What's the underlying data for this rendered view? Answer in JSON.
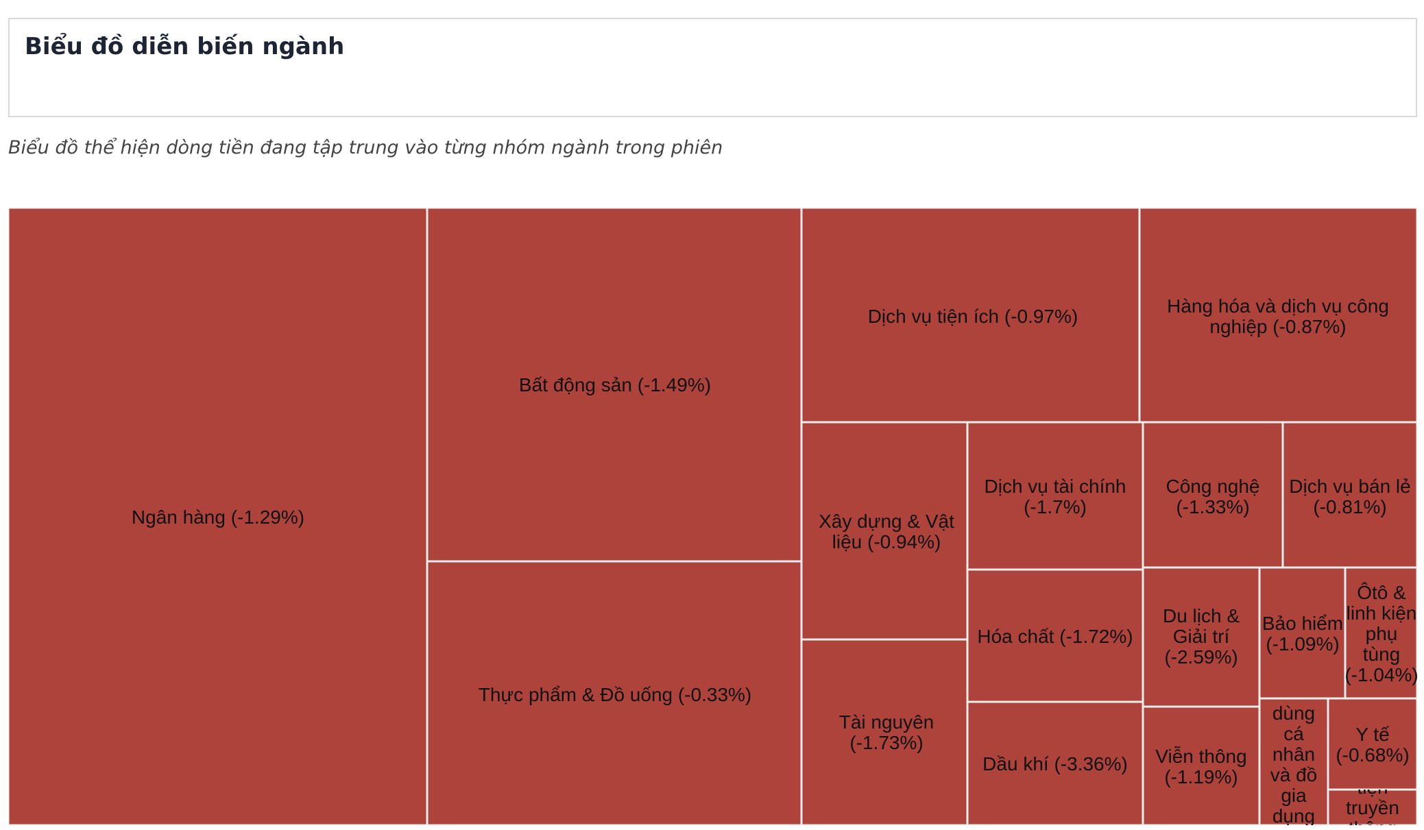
{
  "header": {
    "title": "Biểu đồ diễn biến ngành"
  },
  "subtitle": "Biểu đồ thể hiện dòng tiền đang tập trung vào từng nhóm ngành trong phiên",
  "colors": {
    "tile_fill": "#ad433b",
    "tile_border": "#ededed",
    "label_text": "#111111"
  },
  "chart_data": {
    "type": "treemap",
    "title": "",
    "value_unit": "%",
    "tiles": [
      {
        "name": "Ngân hàng",
        "change": -1.29,
        "label_lines": [
          "Ngân hàng (-1.29%)"
        ]
      },
      {
        "name": "Bất động sản",
        "change": -1.49,
        "label_lines": [
          "Bất động sản (-1.49%)"
        ]
      },
      {
        "name": "Thực phẩm & Đồ uống",
        "change": -0.33,
        "label_lines": [
          "Thực phẩm & Đồ uống (-0.33%)"
        ]
      },
      {
        "name": "Dịch vụ tiện ích",
        "change": -0.97,
        "label_lines": [
          "Dịch vụ tiện ích (-0.97%)"
        ]
      },
      {
        "name": "Hàng hóa và dịch vụ công nghiệp",
        "change": -0.87,
        "label_lines": [
          "Hàng hóa và dịch vụ công",
          "nghiệp (-0.87%)"
        ]
      },
      {
        "name": "Xây dựng & Vật liệu",
        "change": -0.94,
        "label_lines": [
          "Xây dựng & Vật",
          "liệu (-0.94%)"
        ]
      },
      {
        "name": "Tài nguyên",
        "change": -1.73,
        "label_lines": [
          "Tài nguyên",
          "(-1.73%)"
        ]
      },
      {
        "name": "Dịch vụ tài chính",
        "change": -1.7,
        "label_lines": [
          "Dịch vụ tài chính",
          "(-1.7%)"
        ]
      },
      {
        "name": "Hóa chất",
        "change": -1.72,
        "label_lines": [
          "Hóa chất (-1.72%)"
        ]
      },
      {
        "name": "Dầu khí",
        "change": -3.36,
        "label_lines": [
          "Dầu khí (-3.36%)"
        ]
      },
      {
        "name": "Công nghệ",
        "change": -1.33,
        "label_lines": [
          "Công nghệ",
          "(-1.33%)"
        ]
      },
      {
        "name": "Dịch vụ bán lẻ",
        "change": -0.81,
        "label_lines": [
          "Dịch vụ bán lẻ",
          "(-0.81%)"
        ]
      },
      {
        "name": "Du lịch & Giải trí",
        "change": -2.59,
        "label_lines": [
          "Du lịch &",
          "Giải trí",
          "(-2.59%)"
        ]
      },
      {
        "name": "Bảo hiểm",
        "change": -1.09,
        "label_lines": [
          "Bảo hiểm",
          "(-1.09%)"
        ]
      },
      {
        "name": "Ôtô & linh kiện phụ tùng",
        "change": -1.04,
        "label_lines": [
          "Ôtô &",
          "linh kiện",
          "phụ",
          "tùng",
          "(-1.04%)"
        ]
      },
      {
        "name": "Viễn thông",
        "change": -1.19,
        "label_lines": [
          "Viễn thông",
          "(-1.19%)"
        ]
      },
      {
        "name": "Hàng dùng cá nhân và đồ gia dụng",
        "change": null,
        "label_lines": [
          "dùng",
          "cá",
          "nhân",
          "và đồ",
          "gia",
          "dụng"
        ]
      },
      {
        "name": "Y tế",
        "change": -0.68,
        "label_lines": [
          "Y tế",
          "(-0.68%)"
        ]
      },
      {
        "name": "Truyền thông",
        "change": null,
        "label_lines": [
          "tiện",
          "truyền",
          "thông"
        ]
      }
    ]
  }
}
